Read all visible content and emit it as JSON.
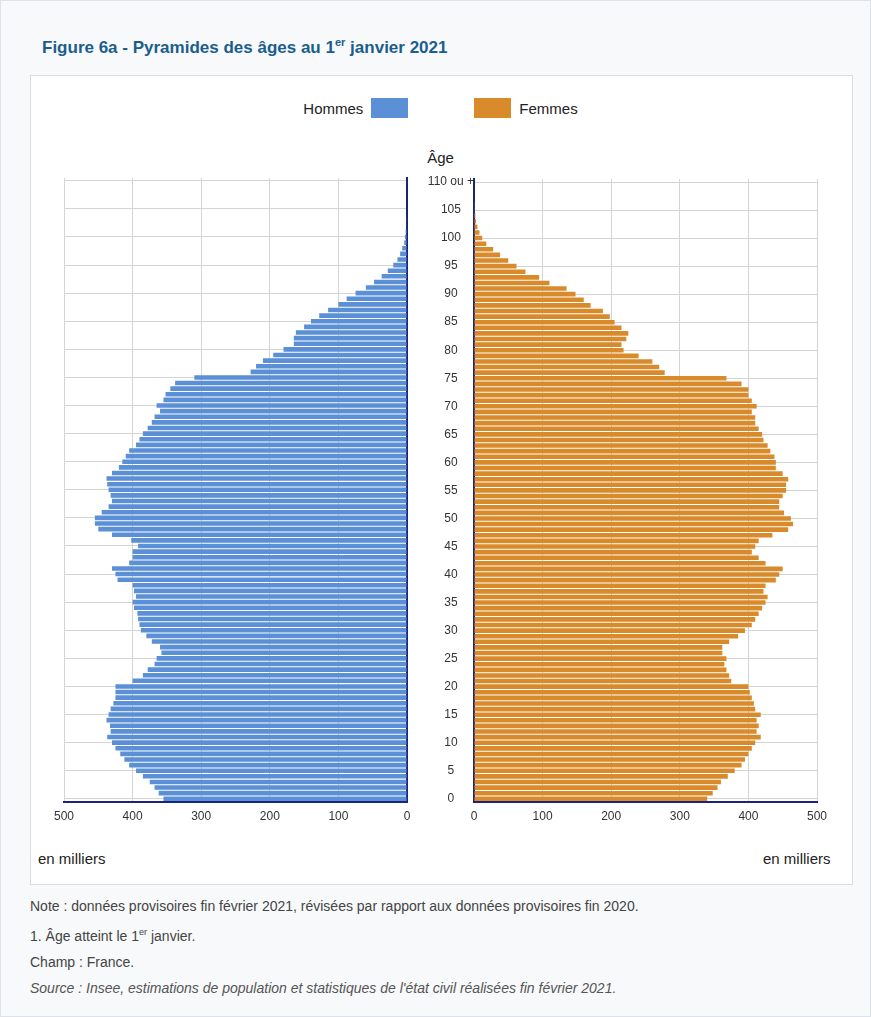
{
  "chart_data": {
    "type": "bar",
    "orientation": "horizontal",
    "title": "Figure 6a - Pyramides des âges au 1er janvier 2021",
    "ylabel": "Âge",
    "xlabel": "en milliers",
    "legend": "top",
    "grid": true,
    "xlim": [
      0,
      500
    ],
    "xticks": [
      0,
      100,
      200,
      300,
      400,
      500
    ],
    "categories": [
      "0",
      null,
      null,
      null,
      null,
      "5",
      null,
      null,
      null,
      null,
      "10",
      null,
      null,
      null,
      null,
      "15",
      null,
      null,
      null,
      null,
      "20",
      null,
      null,
      null,
      null,
      "25",
      null,
      null,
      null,
      null,
      "30",
      null,
      null,
      null,
      null,
      "35",
      null,
      null,
      null,
      null,
      "40",
      null,
      null,
      null,
      null,
      "45",
      null,
      null,
      null,
      null,
      "50",
      null,
      null,
      null,
      null,
      "55",
      null,
      null,
      null,
      null,
      "60",
      null,
      null,
      null,
      null,
      "65",
      null,
      null,
      null,
      null,
      "70",
      null,
      null,
      null,
      null,
      "75",
      null,
      null,
      null,
      null,
      "80",
      null,
      null,
      null,
      null,
      "85",
      null,
      null,
      null,
      null,
      "90",
      null,
      null,
      null,
      null,
      "95",
      null,
      null,
      null,
      null,
      "100",
      null,
      null,
      null,
      null,
      "105",
      null,
      null,
      null,
      null,
      "110 ou +"
    ],
    "series": [
      {
        "name": "Hommes",
        "color": "#5b8fd6",
        "values": [
          355,
          362,
          368,
          375,
          385,
          395,
          405,
          412,
          418,
          425,
          430,
          437,
          432,
          433,
          438,
          435,
          432,
          428,
          425,
          425,
          425,
          400,
          385,
          378,
          368,
          365,
          358,
          360,
          372,
          380,
          388,
          390,
          392,
          393,
          398,
          400,
          395,
          398,
          400,
          422,
          425,
          430,
          405,
          400,
          400,
          392,
          402,
          430,
          450,
          455,
          455,
          445,
          435,
          430,
          432,
          435,
          437,
          438,
          430,
          420,
          415,
          410,
          405,
          395,
          390,
          385,
          378,
          372,
          368,
          360,
          365,
          355,
          352,
          345,
          338,
          310,
          228,
          220,
          210,
          195,
          180,
          165,
          165,
          162,
          150,
          140,
          128,
          115,
          100,
          88,
          75,
          60,
          48,
          37,
          28,
          20,
          14,
          10,
          7,
          4,
          3,
          2,
          1,
          1,
          0,
          0,
          0,
          0,
          0,
          0,
          0
        ]
      },
      {
        "name": "Femmes",
        "color": "#d98b2b",
        "values": [
          340,
          348,
          355,
          360,
          370,
          380,
          390,
          395,
          400,
          405,
          410,
          418,
          412,
          415,
          412,
          418,
          410,
          408,
          405,
          402,
          400,
          375,
          372,
          368,
          365,
          368,
          362,
          362,
          372,
          385,
          395,
          405,
          410,
          415,
          420,
          425,
          428,
          422,
          425,
          440,
          445,
          450,
          425,
          415,
          405,
          410,
          415,
          435,
          458,
          465,
          462,
          452,
          445,
          445,
          450,
          455,
          455,
          458,
          450,
          440,
          440,
          438,
          432,
          428,
          422,
          420,
          415,
          410,
          410,
          405,
          412,
          405,
          400,
          400,
          390,
          368,
          278,
          270,
          260,
          240,
          218,
          215,
          222,
          225,
          215,
          205,
          198,
          188,
          170,
          160,
          148,
          135,
          110,
          95,
          75,
          62,
          50,
          38,
          28,
          18,
          12,
          8,
          5,
          3,
          2,
          1,
          1,
          0,
          0,
          0,
          0
        ]
      }
    ],
    "notes": [
      "Note : données provisoires fin février 2021, révisées par rapport aux données provisoires fin 2020.",
      "1. Âge atteint le 1er janvier.",
      "Champ : France."
    ],
    "source": "Source : Insee, estimations de population et statistiques de l'état civil réalisées fin février 2021."
  }
}
